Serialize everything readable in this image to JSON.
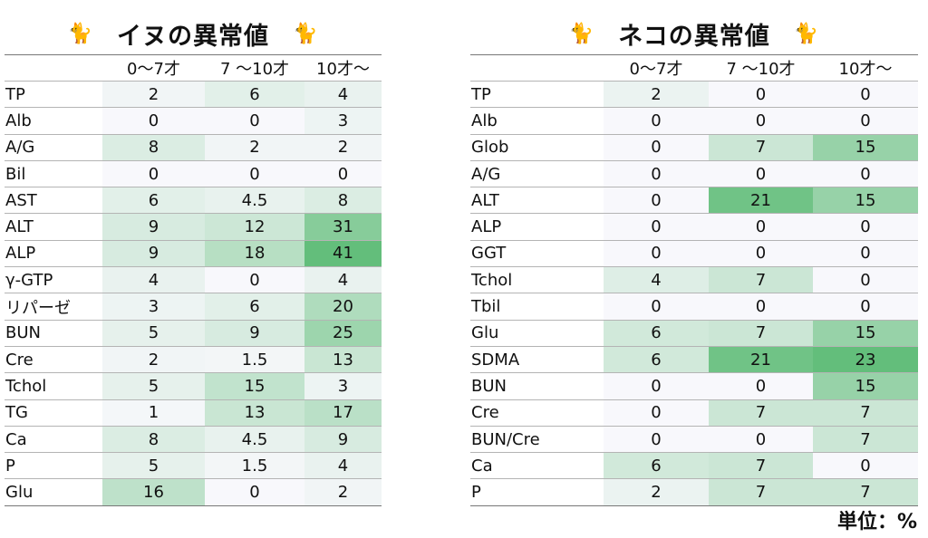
{
  "dog": {
    "title": "イヌの異常値",
    "icon": "cat-icon",
    "columns": [
      "0〜7才",
      "7 〜10才",
      "10才〜"
    ],
    "rows": [
      {
        "label": "TP",
        "values": [
          "2",
          "6",
          "4"
        ]
      },
      {
        "label": "Alb",
        "values": [
          "0",
          "0",
          "3"
        ]
      },
      {
        "label": "A/G",
        "values": [
          "8",
          "2",
          "2"
        ]
      },
      {
        "label": "Bil",
        "values": [
          "0",
          "0",
          "0"
        ]
      },
      {
        "label": "AST",
        "values": [
          "6",
          "4.5",
          "8"
        ]
      },
      {
        "label": "ALT",
        "values": [
          "9",
          "12",
          "31"
        ]
      },
      {
        "label": "ALP",
        "values": [
          "9",
          "18",
          "41"
        ]
      },
      {
        "label": "γ-GTP",
        "values": [
          "4",
          "0",
          "4"
        ]
      },
      {
        "label": "リパーゼ",
        "values": [
          "3",
          "6",
          "20"
        ]
      },
      {
        "label": "BUN",
        "values": [
          "5",
          "9",
          "25"
        ]
      },
      {
        "label": "Cre",
        "values": [
          "2",
          "1.5",
          "13"
        ]
      },
      {
        "label": "Tchol",
        "values": [
          "5",
          "15",
          "3"
        ]
      },
      {
        "label": "TG",
        "values": [
          "1",
          "13",
          "17"
        ]
      },
      {
        "label": "Ca",
        "values": [
          "8",
          "4.5",
          "9"
        ]
      },
      {
        "label": "P",
        "values": [
          "5",
          "1.5",
          "4"
        ]
      },
      {
        "label": "Glu",
        "values": [
          "16",
          "0",
          "2"
        ]
      }
    ]
  },
  "cat": {
    "title": "ネコの異常値",
    "icon": "cat-icon",
    "columns": [
      "0〜7才",
      "7 〜10才",
      "10才〜"
    ],
    "rows": [
      {
        "label": "TP",
        "values": [
          "2",
          "0",
          "0"
        ]
      },
      {
        "label": "Alb",
        "values": [
          "0",
          "0",
          "0"
        ]
      },
      {
        "label": "Glob",
        "values": [
          "0",
          "7",
          "15"
        ]
      },
      {
        "label": "A/G",
        "values": [
          "0",
          "0",
          "0"
        ]
      },
      {
        "label": "ALT",
        "values": [
          "0",
          "21",
          "15"
        ]
      },
      {
        "label": "ALP",
        "values": [
          "0",
          "0",
          "0"
        ]
      },
      {
        "label": "GGT",
        "values": [
          "0",
          "0",
          "0"
        ]
      },
      {
        "label": "Tchol",
        "values": [
          "4",
          "7",
          "0"
        ]
      },
      {
        "label": "Tbil",
        "values": [
          "0",
          "0",
          "0"
        ]
      },
      {
        "label": "Glu",
        "values": [
          "6",
          "7",
          "15"
        ]
      },
      {
        "label": "SDMA",
        "values": [
          "6",
          "21",
          "23"
        ]
      },
      {
        "label": "BUN",
        "values": [
          "0",
          "0",
          "15"
        ]
      },
      {
        "label": "Cre",
        "values": [
          "0",
          "7",
          "7"
        ]
      },
      {
        "label": "BUN/Cre",
        "values": [
          "0",
          "0",
          "7"
        ]
      },
      {
        "label": "Ca",
        "values": [
          "6",
          "7",
          "0"
        ]
      },
      {
        "label": "P",
        "values": [
          "2",
          "7",
          "7"
        ]
      }
    ]
  },
  "unit_label": "単位：%",
  "colors": {
    "heat_low": "#f8f8fc",
    "heat_high": "#63be7b"
  }
}
